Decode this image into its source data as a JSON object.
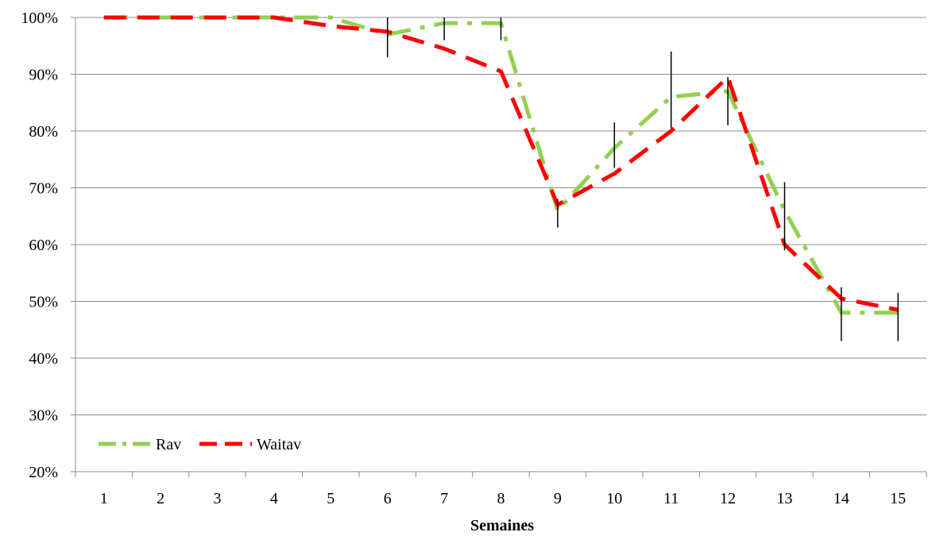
{
  "chart_data": {
    "type": "line",
    "title": "",
    "xlabel": "Semaines",
    "ylabel": "",
    "categories": [
      "1",
      "2",
      "3",
      "4",
      "5",
      "6",
      "7",
      "8",
      "9",
      "10",
      "11",
      "12",
      "13",
      "14",
      "15"
    ],
    "y_ticks": [
      "20%",
      "30%",
      "40%",
      "50%",
      "60%",
      "70%",
      "80%",
      "90%",
      "100%"
    ],
    "ylim": [
      20,
      100
    ],
    "grid": true,
    "legend_position": "bottom-left",
    "series": [
      {
        "name": "Rav",
        "color": "#92D050",
        "line_style": "dash-dot",
        "values": [
          100,
          100,
          100,
          100,
          100,
          97,
          99,
          99,
          66,
          77,
          86,
          87,
          66,
          48,
          48
        ]
      },
      {
        "name": "Waitav",
        "color": "#FF0000",
        "line_style": "dashed",
        "values": [
          100,
          100,
          100,
          100,
          98.5,
          97.5,
          94.5,
          90.5,
          67,
          72.5,
          80,
          89.5,
          60,
          50.5,
          48.5
        ]
      }
    ],
    "error_bars": [
      {
        "x": "6",
        "low": 93,
        "high": 100
      },
      {
        "x": "7",
        "low": 96,
        "high": 100
      },
      {
        "x": "8",
        "low": 96,
        "high": 100
      },
      {
        "x": "9",
        "low": 63,
        "high": 68
      },
      {
        "x": "10",
        "low": 73.5,
        "high": 81.5
      },
      {
        "x": "11",
        "low": 80.5,
        "high": 94
      },
      {
        "x": "12",
        "low": 81,
        "high": 89.5
      },
      {
        "x": "13",
        "low": 59,
        "high": 71
      },
      {
        "x": "14",
        "low": 43,
        "high": 52.5
      },
      {
        "x": "15",
        "low": 43,
        "high": 51.5
      }
    ]
  }
}
